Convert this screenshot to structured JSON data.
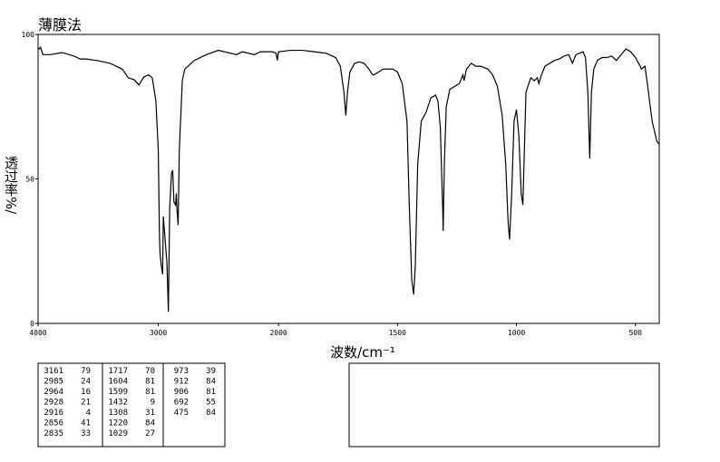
{
  "chart_data": {
    "type": "line",
    "title": "薄膜法",
    "xlabel": "波数/cm⁻¹",
    "ylabel": "透过率%/",
    "color": "#000000",
    "xlim": [
      4000,
      400
    ],
    "x_scale_break": 2000,
    "ylim": [
      0,
      100
    ],
    "xticks": [
      4000,
      3000,
      2000,
      1500,
      1000,
      500
    ],
    "yticks": [
      0,
      50,
      100
    ],
    "x": [
      4000,
      3980,
      3960,
      3900,
      3800,
      3700,
      3650,
      3600,
      3500,
      3400,
      3300,
      3250,
      3200,
      3161,
      3120,
      3080,
      3050,
      3020,
      3000,
      2990,
      2985,
      2975,
      2964,
      2958,
      2945,
      2928,
      2916,
      2905,
      2890,
      2880,
      2870,
      2856,
      2850,
      2845,
      2835,
      2825,
      2800,
      2780,
      2700,
      2600,
      2500,
      2400,
      2350,
      2300,
      2200,
      2150,
      2100,
      2050,
      2020,
      2010,
      2000,
      1950,
      1900,
      1850,
      1800,
      1760,
      1740,
      1725,
      1717,
      1710,
      1700,
      1680,
      1660,
      1640,
      1620,
      1604,
      1599,
      1560,
      1540,
      1520,
      1500,
      1480,
      1460,
      1450,
      1440,
      1432,
      1425,
      1415,
      1400,
      1380,
      1360,
      1340,
      1330,
      1320,
      1310,
      1308,
      1303,
      1295,
      1280,
      1260,
      1240,
      1225,
      1220,
      1210,
      1190,
      1170,
      1150,
      1120,
      1100,
      1080,
      1060,
      1045,
      1035,
      1029,
      1020,
      1010,
      1000,
      990,
      980,
      973,
      960,
      940,
      925,
      912,
      906,
      895,
      880,
      860,
      840,
      820,
      800,
      780,
      765,
      750,
      720,
      710,
      700,
      692,
      685,
      675,
      660,
      640,
      620,
      600,
      580,
      560,
      540,
      520,
      500,
      480,
      475,
      460,
      450,
      430,
      410,
      400
    ],
    "values": [
      94.7,
      95.6,
      93,
      93,
      93.7,
      92.5,
      91.5,
      91.5,
      90.9,
      90,
      88,
      85,
      84.3,
      82.5,
      85.3,
      86,
      85,
      77,
      60,
      30,
      24,
      20,
      17,
      37,
      30,
      21,
      4,
      40,
      52,
      53,
      42,
      41,
      45,
      40,
      34,
      60,
      84,
      88,
      91,
      93,
      94.5,
      93.5,
      93,
      94,
      93,
      94,
      94,
      94,
      93.5,
      91,
      94,
      94.5,
      94.5,
      94,
      93.5,
      92,
      89,
      80,
      72,
      80,
      87,
      90,
      90.5,
      90,
      88,
      86,
      86,
      88,
      88,
      88,
      87,
      83,
      70,
      40,
      15,
      10,
      20,
      55,
      70,
      73,
      78,
      79,
      77,
      68,
      40,
      32,
      55,
      75,
      81,
      82,
      83,
      86,
      84,
      88,
      90,
      89,
      89,
      88,
      86,
      82,
      72,
      55,
      35,
      29,
      45,
      70,
      74,
      65,
      45,
      41,
      80,
      85,
      84,
      85,
      83,
      86,
      89,
      90,
      91,
      91.5,
      92.5,
      93,
      90,
      93,
      94,
      92,
      80,
      57,
      80,
      88,
      91,
      92,
      92,
      92.5,
      91,
      93,
      95,
      94,
      92,
      89,
      88,
      89,
      83,
      70,
      63,
      62
    ],
    "peak_table": [
      [
        [
          3161,
          79
        ],
        [
          2985,
          24
        ],
        [
          2964,
          16
        ],
        [
          2928,
          21
        ],
        [
          2916,
          4
        ],
        [
          2856,
          41
        ],
        [
          2835,
          33
        ]
      ],
      [
        [
          1717,
          70
        ],
        [
          1604,
          81
        ],
        [
          1599,
          81
        ],
        [
          1432,
          9
        ],
        [
          1308,
          31
        ],
        [
          1220,
          84
        ],
        [
          1029,
          27
        ]
      ],
      [
        [
          973,
          39
        ],
        [
          912,
          84
        ],
        [
          906,
          81
        ],
        [
          692,
          55
        ],
        [
          475,
          84
        ]
      ]
    ]
  }
}
